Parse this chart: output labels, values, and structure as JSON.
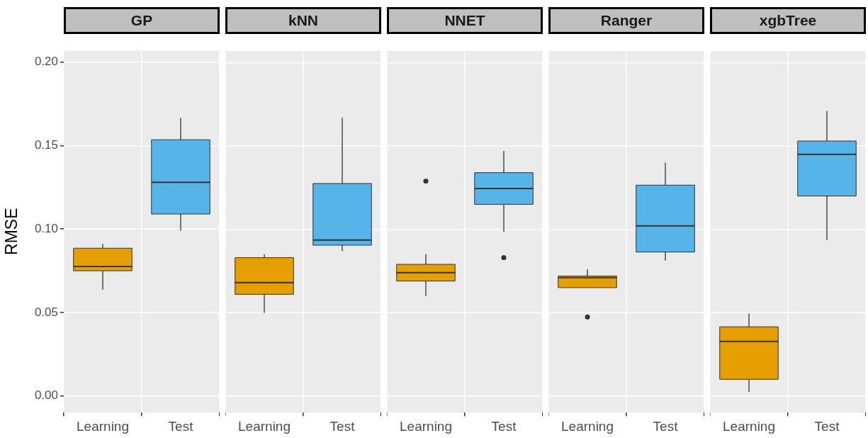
{
  "chart_data": [
    {
      "type": "box",
      "title": "GP",
      "ylabel": "RMSE",
      "categories": [
        "Learning",
        "Test"
      ],
      "colors": [
        "#e69f00",
        "#56b4e9"
      ],
      "ylim": [
        -0.01,
        0.207
      ],
      "yticks": [
        {
          "value": 0,
          "label": "0.00"
        },
        {
          "value": 0.05,
          "label": "0.05"
        },
        {
          "value": 0.1,
          "label": "0.10"
        },
        {
          "value": 0.15,
          "label": "0.15"
        },
        {
          "value": 0.2,
          "label": "0.20"
        }
      ],
      "grid": true,
      "boxes": [
        {
          "low": 0.0637,
          "q1": 0.075,
          "median": 0.0776,
          "q3": 0.0885,
          "high": 0.091
        },
        {
          "low": 0.099,
          "q1": 0.109,
          "median": 0.128,
          "q3": 0.1535,
          "high": 0.1665
        }
      ]
    },
    {
      "type": "box",
      "title": "kNN",
      "categories": [
        "Learning",
        "Test"
      ],
      "colors": [
        "#e69f00",
        "#56b4e9"
      ],
      "ylim": [
        -0.01,
        0.207
      ],
      "yticks": [
        0,
        0.05,
        0.1,
        0.15,
        0.2
      ],
      "grid": true,
      "tick_labels": "x",
      "boxes": [
        {
          "low": 0.05,
          "q1": 0.061,
          "median": 0.068,
          "q3": 0.083,
          "high": 0.085
        },
        {
          "low": 0.087,
          "q1": 0.0905,
          "median": 0.0935,
          "q3": 0.1275,
          "high": 0.167
        }
      ]
    },
    {
      "type": "box",
      "title": "NNET",
      "categories": [
        "Learning",
        "Test"
      ],
      "colors": [
        "#e69f00",
        "#56b4e9"
      ],
      "ylim": [
        -0.01,
        0.207
      ],
      "yticks": [
        0,
        0.05,
        0.1,
        0.15,
        0.2
      ],
      "grid": true,
      "tick_labels": "x",
      "boxes": [
        {
          "low": 0.06,
          "q1": 0.069,
          "median": 0.074,
          "q3": 0.079,
          "high": 0.085,
          "outliers": [
            0.129
          ]
        },
        {
          "low": 0.0985,
          "q1": 0.115,
          "median": 0.1245,
          "q3": 0.134,
          "high": 0.147,
          "outliers": [
            0.083
          ]
        }
      ]
    },
    {
      "type": "box",
      "title": "Ranger",
      "categories": [
        "Learning",
        "Test"
      ],
      "colors": [
        "#e69f00",
        "#56b4e9"
      ],
      "ylim": [
        -0.01,
        0.207
      ],
      "yticks": [
        0,
        0.05,
        0.1,
        0.15,
        0.2
      ],
      "grid": true,
      "tick_labels": "x",
      "boxes": [
        {
          "low": 0.065,
          "q1": 0.065,
          "median": 0.071,
          "q3": 0.072,
          "high": 0.076,
          "outliers": [
            0.0474
          ]
        },
        {
          "low": 0.0813,
          "q1": 0.0864,
          "median": 0.102,
          "q3": 0.1265,
          "high": 0.14
        }
      ]
    },
    {
      "type": "box",
      "title": "xgbTree",
      "categories": [
        "Learning",
        "Test"
      ],
      "colors": [
        "#e69f00",
        "#56b4e9"
      ],
      "ylim": [
        -0.01,
        0.207
      ],
      "yticks": [
        0,
        0.05,
        0.1,
        0.15,
        0.2
      ],
      "grid": true,
      "tick_labels": "x",
      "boxes": [
        {
          "low": 0.0025,
          "q1": 0.01,
          "median": 0.0327,
          "q3": 0.0415,
          "high": 0.0495
        },
        {
          "low": 0.0935,
          "q1": 0.12,
          "median": 0.145,
          "q3": 0.153,
          "high": 0.171
        }
      ]
    }
  ]
}
